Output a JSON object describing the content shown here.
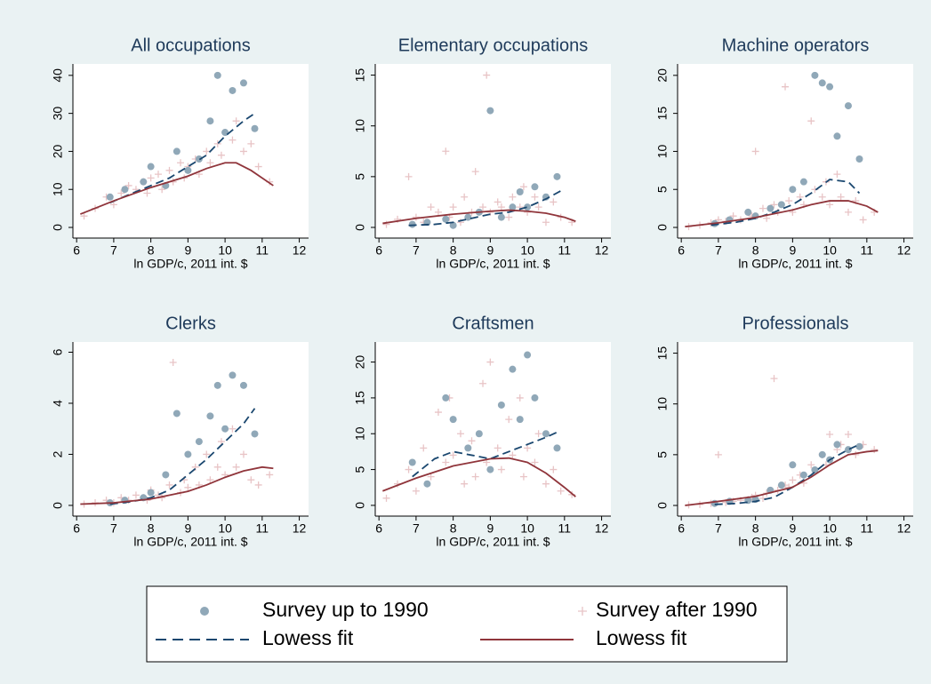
{
  "chart_data": [
    {
      "type": "scatter",
      "title": "All occupations",
      "xlabel": "ln GDP/c, 2011 int. $",
      "xlim": [
        5.9,
        12.25
      ],
      "xticks": [
        6,
        7,
        8,
        9,
        10,
        11,
        12
      ],
      "ylim": [
        -2.8,
        43
      ],
      "yticks": [
        0,
        10,
        20,
        30,
        40
      ],
      "legend": "bottom",
      "series": [
        {
          "name": "Survey after 1990",
          "type": "scatter",
          "marker": "plus",
          "color": "#e8c4c6",
          "x": [
            6.2,
            6.5,
            6.8,
            7.0,
            7.2,
            7.4,
            7.6,
            7.8,
            7.9,
            8.0,
            8.2,
            8.3,
            8.5,
            8.6,
            8.8,
            8.9,
            9.0,
            9.2,
            9.3,
            9.5,
            9.6,
            9.8,
            9.9,
            10.0,
            10.2,
            10.3,
            10.5,
            10.7,
            10.9,
            11.2
          ],
          "values": [
            3,
            5,
            8,
            6,
            9,
            11,
            10,
            12,
            9,
            13,
            14,
            10,
            15,
            12,
            17,
            13,
            16,
            18,
            14,
            20,
            17,
            22,
            19,
            25,
            23,
            28,
            20,
            22,
            16,
            12
          ]
        },
        {
          "name": "Survey up to 1990",
          "type": "scatter",
          "marker": "circle",
          "color": "#90a8b8",
          "x": [
            6.9,
            7.3,
            7.8,
            8.0,
            8.4,
            8.7,
            9.0,
            9.3,
            9.6,
            9.8,
            10.0,
            10.2,
            10.5,
            10.8
          ],
          "values": [
            8,
            10,
            12,
            16,
            11,
            20,
            15,
            18,
            28,
            40,
            25,
            36,
            38,
            26
          ]
        },
        {
          "name": "Lowess fit",
          "type": "line",
          "dash": true,
          "color": "#1a476f",
          "x": [
            6.9,
            7.5,
            8,
            8.5,
            9,
            9.5,
            10,
            10.5,
            10.8
          ],
          "values": [
            6.5,
            9,
            11,
            13,
            16,
            19,
            24,
            28,
            30
          ]
        },
        {
          "name": "Lowess fit",
          "type": "line",
          "dash": false,
          "color": "#90353b",
          "x": [
            6.1,
            7,
            8,
            9,
            9.5,
            10,
            10.3,
            10.7,
            11.3
          ],
          "values": [
            3.5,
            7,
            10.5,
            13.5,
            15.5,
            17,
            17,
            15,
            11
          ]
        }
      ]
    },
    {
      "type": "scatter",
      "title": "Elementary occupations",
      "xlabel": "ln GDP/c, 2011 int. $",
      "xlim": [
        5.9,
        12.25
      ],
      "xticks": [
        6,
        7,
        8,
        9,
        10,
        11,
        12
      ],
      "ylim": [
        -1.05,
        16.1
      ],
      "yticks": [
        0,
        5,
        10,
        15
      ],
      "series": [
        {
          "type": "scatter",
          "marker": "plus",
          "color": "#e8c4c6",
          "x": [
            6.2,
            6.5,
            6.8,
            7.0,
            7.2,
            7.4,
            7.6,
            7.8,
            7.9,
            8.0,
            8.2,
            8.3,
            8.5,
            8.6,
            8.8,
            8.9,
            9.0,
            9.2,
            9.3,
            9.5,
            9.6,
            9.8,
            9.9,
            10.0,
            10.2,
            10.3,
            10.5,
            10.7,
            10.9,
            11.2
          ],
          "values": [
            0.3,
            0.8,
            5,
            1,
            0.5,
            2,
            1.5,
            7.5,
            1,
            2,
            0.5,
            3,
            1.5,
            5.5,
            2,
            15,
            1.5,
            2.5,
            2,
            1,
            3,
            2,
            4,
            1.5,
            3,
            2,
            0.5,
            2.5,
            1,
            0.5
          ]
        },
        {
          "type": "scatter",
          "marker": "circle",
          "color": "#90a8b8",
          "x": [
            6.9,
            7.3,
            7.8,
            8.0,
            8.4,
            8.7,
            9.0,
            9.3,
            9.6,
            9.8,
            10.0,
            10.2,
            10.5,
            10.8
          ],
          "values": [
            0.3,
            0.5,
            0.8,
            0.2,
            1,
            1.5,
            11.5,
            1,
            2,
            3.5,
            2,
            4,
            3,
            5
          ]
        },
        {
          "type": "line",
          "dash": true,
          "color": "#1a476f",
          "x": [
            6.8,
            7.5,
            8,
            8.5,
            9,
            9.5,
            10,
            10.5,
            10.9
          ],
          "values": [
            0.2,
            0.3,
            0.5,
            0.9,
            1.3,
            1.5,
            2,
            2.8,
            3.6
          ]
        },
        {
          "type": "line",
          "dash": false,
          "color": "#90353b",
          "x": [
            6.1,
            7,
            8,
            9,
            9.5,
            10,
            10.5,
            11,
            11.3
          ],
          "values": [
            0.4,
            0.9,
            1.3,
            1.6,
            1.7,
            1.6,
            1.4,
            1,
            0.6
          ]
        }
      ]
    },
    {
      "type": "scatter",
      "title": "Machine operators",
      "xlabel": "ln GDP/c, 2011 int. $",
      "xlim": [
        5.9,
        12.25
      ],
      "xticks": [
        6,
        7,
        8,
        9,
        10,
        11,
        12
      ],
      "ylim": [
        -1.4,
        21.5
      ],
      "yticks": [
        0,
        5,
        10,
        15,
        20
      ],
      "series": [
        {
          "type": "scatter",
          "marker": "plus",
          "color": "#e8c4c6",
          "x": [
            6.2,
            6.5,
            6.8,
            7.0,
            7.2,
            7.4,
            7.6,
            7.8,
            7.9,
            8.0,
            8.2,
            8.3,
            8.5,
            8.6,
            8.8,
            8.9,
            9.0,
            9.2,
            9.3,
            9.5,
            9.6,
            9.8,
            9.9,
            10.0,
            10.2,
            10.3,
            10.5,
            10.7,
            10.9,
            11.2
          ],
          "values": [
            0.1,
            0.3,
            0.6,
            1,
            0.8,
            1.5,
            1,
            2,
            1.5,
            10,
            2.5,
            1.2,
            3,
            2,
            18.5,
            3.5,
            2,
            4,
            3,
            14,
            5,
            4,
            6,
            3,
            7,
            4,
            2,
            3.5,
            1,
            2
          ]
        },
        {
          "type": "scatter",
          "marker": "circle",
          "color": "#90a8b8",
          "x": [
            6.9,
            7.3,
            7.8,
            8.0,
            8.4,
            8.7,
            9.0,
            9.3,
            9.6,
            9.8,
            10.0,
            10.2,
            10.5,
            10.8
          ],
          "values": [
            0.5,
            1,
            2,
            1.5,
            2.5,
            3,
            5,
            6,
            20,
            19,
            18.5,
            12,
            16,
            9
          ]
        },
        {
          "type": "line",
          "dash": true,
          "color": "#1a476f",
          "x": [
            6.8,
            7.5,
            8,
            8.5,
            9,
            9.5,
            10,
            10.5,
            10.8
          ],
          "values": [
            0.3,
            0.7,
            1.2,
            2,
            3,
            4.5,
            6.3,
            6,
            4.5
          ]
        },
        {
          "type": "line",
          "dash": false,
          "color": "#90353b",
          "x": [
            6.1,
            7,
            8,
            9,
            9.5,
            10,
            10.5,
            11,
            11.3
          ],
          "values": [
            0.1,
            0.6,
            1.3,
            2.3,
            3,
            3.5,
            3.5,
            2.8,
            2
          ]
        }
      ]
    },
    {
      "type": "scatter",
      "title": "Clerks",
      "xlabel": "ln GDP/c, 2011 int. $",
      "xlim": [
        5.9,
        12.25
      ],
      "xticks": [
        6,
        7,
        8,
        9,
        10,
        11,
        12
      ],
      "ylim": [
        -0.42,
        6.4
      ],
      "yticks": [
        0,
        2,
        4,
        6
      ],
      "series": [
        {
          "type": "scatter",
          "marker": "plus",
          "color": "#e8c4c6",
          "x": [
            6.2,
            6.5,
            6.8,
            7.0,
            7.2,
            7.4,
            7.6,
            7.8,
            7.9,
            8.0,
            8.2,
            8.3,
            8.5,
            8.6,
            8.8,
            8.9,
            9.0,
            9.2,
            9.3,
            9.5,
            9.6,
            9.8,
            9.9,
            10.0,
            10.2,
            10.3,
            10.5,
            10.7,
            10.9,
            11.2
          ],
          "values": [
            0.05,
            0.1,
            0.2,
            0.1,
            0.3,
            0.2,
            0.4,
            0.3,
            0.2,
            0.6,
            0.4,
            0.3,
            0.8,
            5.6,
            0.5,
            1,
            0.7,
            1.5,
            0.8,
            2,
            1,
            1.5,
            2.5,
            1.2,
            3,
            1.5,
            2,
            1,
            0.8,
            1.2
          ]
        },
        {
          "type": "scatter",
          "marker": "circle",
          "color": "#90a8b8",
          "x": [
            6.9,
            7.3,
            7.8,
            8.0,
            8.4,
            8.7,
            9.0,
            9.3,
            9.6,
            9.8,
            10.0,
            10.2,
            10.5,
            10.8
          ],
          "values": [
            0.1,
            0.2,
            0.3,
            0.5,
            1.2,
            3.6,
            2,
            2.5,
            3.5,
            4.7,
            3,
            5.1,
            4.7,
            2.8
          ]
        },
        {
          "type": "line",
          "dash": true,
          "color": "#1a476f",
          "x": [
            6.9,
            7.5,
            8,
            8.5,
            9,
            9.5,
            10,
            10.5,
            10.8
          ],
          "values": [
            0.05,
            0.15,
            0.3,
            0.6,
            1.2,
            1.8,
            2.5,
            3.2,
            3.8
          ]
        },
        {
          "type": "line",
          "dash": false,
          "color": "#90353b",
          "x": [
            6.1,
            7,
            8,
            9,
            9.5,
            10,
            10.5,
            11,
            11.3
          ],
          "values": [
            0.05,
            0.1,
            0.25,
            0.55,
            0.8,
            1.1,
            1.35,
            1.5,
            1.45
          ]
        }
      ]
    },
    {
      "type": "scatter",
      "title": "Craftsmen",
      "xlabel": "ln GDP/c, 2011 int. $",
      "xlim": [
        5.9,
        12.25
      ],
      "xticks": [
        6,
        7,
        8,
        9,
        10,
        11,
        12
      ],
      "ylim": [
        -1.5,
        22.8
      ],
      "yticks": [
        0,
        5,
        10,
        15,
        20
      ],
      "series": [
        {
          "type": "scatter",
          "marker": "plus",
          "color": "#e8c4c6",
          "x": [
            6.2,
            6.5,
            6.8,
            7.0,
            7.2,
            7.4,
            7.6,
            7.8,
            7.9,
            8.0,
            8.2,
            8.3,
            8.5,
            8.6,
            8.8,
            8.9,
            9.0,
            9.2,
            9.3,
            9.5,
            9.6,
            9.8,
            9.9,
            10.0,
            10.2,
            10.3,
            10.5,
            10.7,
            10.9,
            11.2
          ],
          "values": [
            1,
            3,
            5,
            2,
            8,
            4,
            13,
            6,
            15,
            7,
            10,
            3,
            9,
            4,
            17,
            6,
            20,
            8,
            5,
            12,
            7,
            15,
            4,
            8,
            6,
            10,
            3,
            5,
            2,
            1.5
          ]
        },
        {
          "type": "scatter",
          "marker": "circle",
          "color": "#90a8b8",
          "x": [
            6.9,
            7.3,
            7.8,
            8.0,
            8.4,
            8.7,
            9.0,
            9.3,
            9.6,
            9.8,
            10.0,
            10.2,
            10.5,
            10.8
          ],
          "values": [
            6,
            3,
            15,
            12,
            8,
            10,
            5,
            14,
            19,
            12,
            21,
            15,
            10,
            8
          ]
        },
        {
          "type": "line",
          "dash": true,
          "color": "#1a476f",
          "x": [
            6.9,
            7.5,
            8,
            8.5,
            9,
            9.5,
            10,
            10.5,
            10.8
          ],
          "values": [
            4,
            6.5,
            7.5,
            7,
            6.5,
            7.5,
            8.5,
            9.5,
            10.2
          ]
        },
        {
          "type": "line",
          "dash": false,
          "color": "#90353b",
          "x": [
            6.1,
            7,
            8,
            9,
            9.5,
            10,
            10.5,
            11,
            11.3
          ],
          "values": [
            2,
            3.8,
            5.5,
            6.5,
            6.6,
            6,
            4.5,
            2.5,
            1.2
          ]
        }
      ]
    },
    {
      "type": "scatter",
      "title": "Professionals",
      "xlabel": "ln GDP/c, 2011 int. $",
      "xlim": [
        5.9,
        12.25
      ],
      "xticks": [
        6,
        7,
        8,
        9,
        10,
        11,
        12
      ],
      "ylim": [
        -1.05,
        16.1
      ],
      "yticks": [
        0,
        5,
        10,
        15
      ],
      "series": [
        {
          "type": "scatter",
          "marker": "plus",
          "color": "#e8c4c6",
          "x": [
            6.2,
            6.5,
            6.8,
            7.0,
            7.2,
            7.4,
            7.6,
            7.8,
            7.9,
            8.0,
            8.2,
            8.3,
            8.5,
            8.6,
            8.8,
            8.9,
            9.0,
            9.2,
            9.3,
            9.5,
            9.6,
            9.8,
            9.9,
            10.0,
            10.2,
            10.3,
            10.5,
            10.7,
            10.9,
            11.2
          ],
          "values": [
            0.05,
            0.1,
            0.2,
            5,
            0.3,
            0.4,
            0.5,
            0.6,
            0.8,
            1,
            0.7,
            1.2,
            12.5,
            1.5,
            2,
            1.8,
            2.5,
            3,
            2.2,
            4,
            3.5,
            5,
            4,
            7,
            5.5,
            6,
            7,
            5,
            6,
            5.5
          ]
        },
        {
          "type": "scatter",
          "marker": "circle",
          "color": "#90a8b8",
          "x": [
            6.9,
            7.3,
            7.8,
            8.0,
            8.4,
            8.7,
            9.0,
            9.3,
            9.6,
            9.8,
            10.0,
            10.2,
            10.5,
            10.8
          ],
          "values": [
            0.2,
            0.4,
            0.5,
            0.6,
            1.5,
            2,
            4,
            3,
            3.5,
            5,
            4.5,
            6,
            5.5,
            5.8
          ]
        },
        {
          "type": "line",
          "dash": true,
          "color": "#1a476f",
          "x": [
            6.9,
            7.5,
            8,
            8.5,
            9,
            9.5,
            10,
            10.5,
            10.8
          ],
          "values": [
            0.1,
            0.2,
            0.4,
            0.8,
            1.8,
            3,
            4.5,
            5.5,
            6
          ]
        },
        {
          "type": "line",
          "dash": false,
          "color": "#90353b",
          "x": [
            6.1,
            7,
            8,
            9,
            9.5,
            10,
            10.5,
            11,
            11.3
          ],
          "values": [
            0,
            0.4,
            0.9,
            1.8,
            2.8,
            4,
            5,
            5.3,
            5.4
          ]
        }
      ]
    }
  ]
}
